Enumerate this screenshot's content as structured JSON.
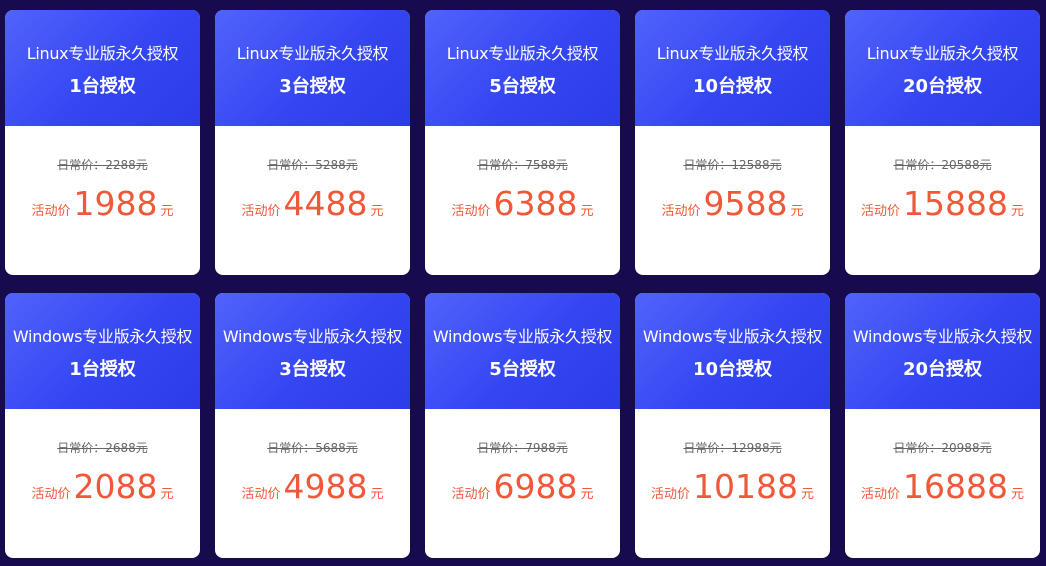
{
  "cards": [
    {
      "title": "Linux专业版永久授权",
      "seats": "1台授权",
      "regular": "日常价：2288元",
      "label": "活动价",
      "price": "1988",
      "unit": "元"
    },
    {
      "title": "Linux专业版永久授权",
      "seats": "3台授权",
      "regular": "日常价：5288元",
      "label": "活动价",
      "price": "4488",
      "unit": "元"
    },
    {
      "title": "Linux专业版永久授权",
      "seats": "5台授权",
      "regular": "日常价：7588元",
      "label": "活动价",
      "price": "6388",
      "unit": "元"
    },
    {
      "title": "Linux专业版永久授权",
      "seats": "10台授权",
      "regular": "日常价：12588元",
      "label": "活动价",
      "price": "9588",
      "unit": "元"
    },
    {
      "title": "Linux专业版永久授权",
      "seats": "20台授权",
      "regular": "日常价：20588元",
      "label": "活动价",
      "price": "15888",
      "unit": "元"
    },
    {
      "title": "Windows专业版永久授权",
      "seats": "1台授权",
      "regular": "日常价：2688元",
      "label": "活动价",
      "price": "2088",
      "unit": "元"
    },
    {
      "title": "Windows专业版永久授权",
      "seats": "3台授权",
      "regular": "日常价：5688元",
      "label": "活动价",
      "price": "4988",
      "unit": "元"
    },
    {
      "title": "Windows专业版永久授权",
      "seats": "5台授权",
      "regular": "日常价：7988元",
      "label": "活动价",
      "price": "6988",
      "unit": "元"
    },
    {
      "title": "Windows专业版永久授权",
      "seats": "10台授权",
      "regular": "日常价：12988元",
      "label": "活动价",
      "price": "10188",
      "unit": "元"
    },
    {
      "title": "Windows专业版永久授权",
      "seats": "20台授权",
      "regular": "日常价：20988元",
      "label": "活动价",
      "price": "16888",
      "unit": "元"
    }
  ]
}
